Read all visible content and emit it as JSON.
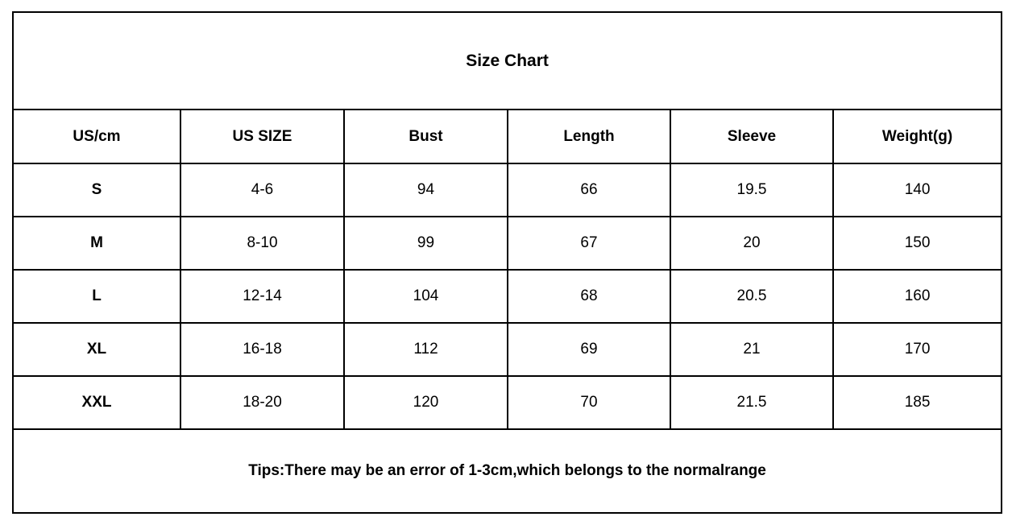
{
  "title": "Size Chart",
  "table": {
    "columns": [
      "US/cm",
      "US SIZE",
      "Bust",
      "Length",
      "Sleeve",
      "Weight(g)"
    ],
    "rows": [
      {
        "size": "S",
        "values": [
          "4-6",
          "94",
          "66",
          "19.5",
          "140"
        ]
      },
      {
        "size": "M",
        "values": [
          "8-10",
          "99",
          "67",
          "20",
          "150"
        ]
      },
      {
        "size": "L",
        "values": [
          "12-14",
          "104",
          "68",
          "20.5",
          "160"
        ]
      },
      {
        "size": "XL",
        "values": [
          "16-18",
          "112",
          "69",
          "21",
          "170"
        ]
      },
      {
        "size": "XXL",
        "values": [
          "18-20",
          "120",
          "70",
          "21.5",
          "185"
        ]
      }
    ]
  },
  "tips": "Tips:There may be an error of 1-3cm,which belongs to the normalrange"
}
